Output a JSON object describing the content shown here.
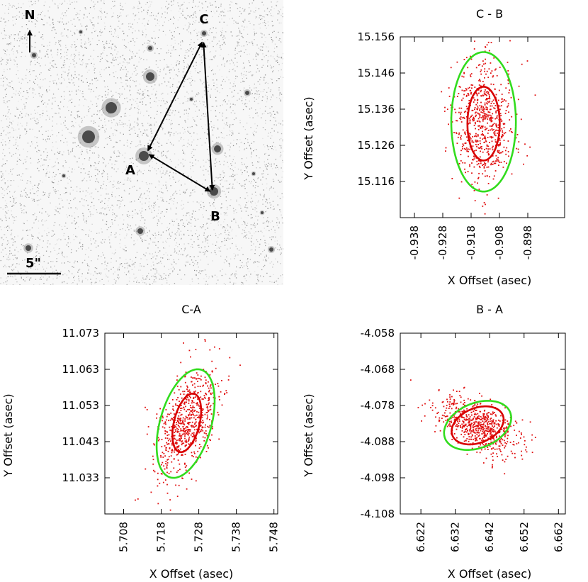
{
  "sky_image": {
    "north_label": "N",
    "scale_label": "5\"",
    "image_labels": [
      "A",
      "B",
      "C"
    ]
  },
  "chart_data": [
    {
      "type": "scatter",
      "title": "C - B",
      "xlabel": "X Offset (asec)",
      "ylabel": "Y Offset (asec)",
      "xlim": [
        -0.943,
        -0.885
      ],
      "ylim": [
        15.106,
        15.156
      ],
      "xticks": [
        -0.938,
        -0.928,
        -0.918,
        -0.908,
        -0.898
      ],
      "yticks": [
        15.116,
        15.126,
        15.136,
        15.146,
        15.156
      ],
      "point_color": "#e01010",
      "point_count": 700,
      "point_cloud": {
        "center": [
          -0.9136,
          15.132
        ],
        "sd": [
          0.0055,
          0.0085
        ],
        "corr": 0.0
      },
      "ellipses": [
        {
          "level": "inner",
          "color": "#d80000",
          "center": [
            -0.9136,
            15.132
          ],
          "semi_axes": [
            0.0057,
            0.0102
          ],
          "angle_deg": 0
        },
        {
          "level": "outer",
          "color": "#32dc1e",
          "center": [
            -0.9136,
            15.1325
          ],
          "semi_axes": [
            0.0114,
            0.0193
          ],
          "angle_deg": 0
        }
      ]
    },
    {
      "type": "scatter",
      "title": "C-A",
      "xlabel": "X Offset (asec)",
      "ylabel": "Y Offset (asec)",
      "xlim": [
        5.703,
        5.749
      ],
      "ylim": [
        11.023,
        11.073
      ],
      "xticks": [
        5.708,
        5.718,
        5.728,
        5.738,
        5.748
      ],
      "yticks": [
        11.033,
        11.043,
        11.053,
        11.063,
        11.073
      ],
      "point_color": "#e01010",
      "point_count": 700,
      "point_cloud": {
        "center": [
          5.7248,
          11.0482
        ],
        "sd": [
          0.0042,
          0.0072
        ],
        "corr": 0.55
      },
      "ellipses": [
        {
          "level": "inner",
          "color": "#d80000",
          "center": [
            5.7248,
            11.0482
          ],
          "semi_axes": [
            0.0034,
            0.0083
          ],
          "angle_deg": 14
        },
        {
          "level": "outer",
          "color": "#32dc1e",
          "center": [
            5.7245,
            11.048
          ],
          "semi_axes": [
            0.0068,
            0.0155
          ],
          "angle_deg": 16
        }
      ]
    },
    {
      "type": "scatter",
      "title": "B - A",
      "xlabel": "X Offset (asec)",
      "ylabel": "Y Offset (asec)",
      "xlim": [
        6.616,
        6.664
      ],
      "ylim": [
        -4.108,
        -4.058
      ],
      "xticks": [
        6.622,
        6.632,
        6.642,
        6.652,
        6.662
      ],
      "yticks": [
        -4.108,
        -4.098,
        -4.088,
        -4.078,
        -4.068,
        -4.058
      ],
      "point_color": "#e01010",
      "point_count": 700,
      "point_cloud": {
        "center": [
          6.6385,
          -4.0835
        ],
        "sd": [
          0.0058,
          0.0038
        ],
        "corr": -0.5
      },
      "ellipses": [
        {
          "level": "inner",
          "color": "#d80000",
          "center": [
            6.6385,
            -4.0835
          ],
          "semi_axes": [
            0.0079,
            0.0048
          ],
          "angle_deg": -22
        },
        {
          "level": "outer",
          "color": "#32dc1e",
          "center": [
            6.6385,
            -4.0835
          ],
          "semi_axes": [
            0.0102,
            0.0062
          ],
          "angle_deg": -22
        }
      ]
    }
  ]
}
